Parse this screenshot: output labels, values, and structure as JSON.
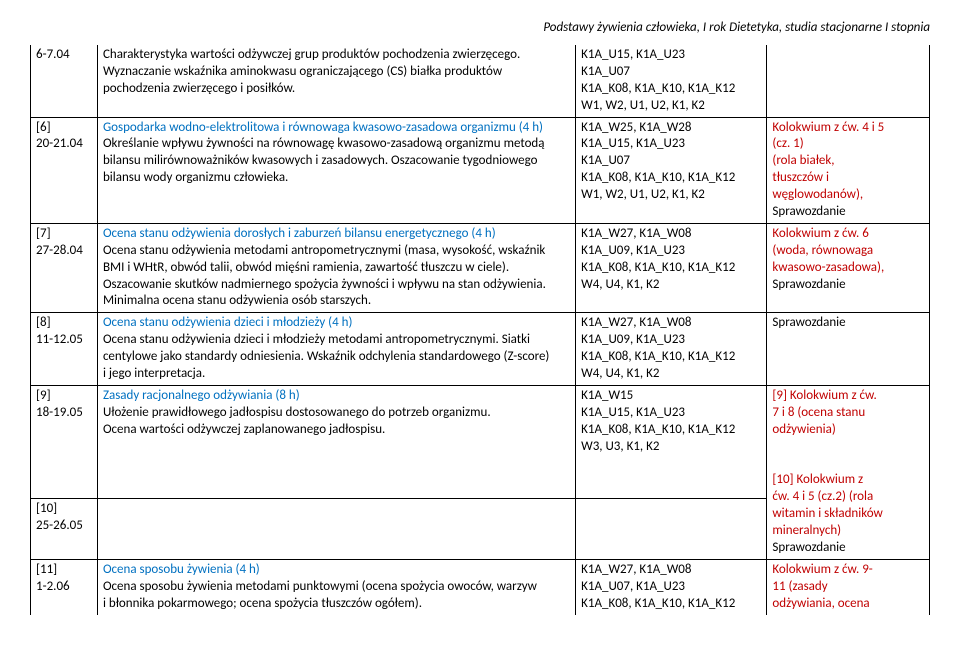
{
  "header": "Podstawy żywienia człowieka,  I rok Dietetyka, studia stacjonarne I stopnia",
  "rows": [
    {
      "col1": "6-7.04",
      "col2_lines": [
        {
          "t": "Charakterystyka wartości odżywczej grup produktów pochodzenia zwierzęcego."
        },
        {
          "t": "Wyznaczanie wskaźnika aminokwasu ograniczającego (CS) białka produktów"
        },
        {
          "t": "pochodzenia zwierzęcego i posiłków."
        }
      ],
      "col3_lines": [
        {
          "t": "K1A_U15, K1A_U23"
        },
        {
          "t": "K1A_U07"
        },
        {
          "t": "K1A_K08, K1A_K10, K1A_K12"
        },
        {
          "t": "W1, W2, U1, U2, K1, K2"
        }
      ],
      "col4_lines": [],
      "nb_top": true
    },
    {
      "col1": "[6]\n20-21.04",
      "col2_lines": [
        {
          "t": "Gospodarka wodno-elektrolitowa i równowaga kwasowo-zasadowa organizmu (4 h)",
          "c": "blue"
        },
        {
          "t": "Określanie wpływu żywności na równowagę kwasowo-zasadową organizmu metodą"
        },
        {
          "t": "bilansu milirównoważników kwasowych i zasadowych. Oszacowanie tygodniowego"
        },
        {
          "t": "bilansu wody organizmu człowieka."
        }
      ],
      "col3_lines": [
        {
          "t": "K1A_W25, K1A_W28"
        },
        {
          "t": "K1A_U15, K1A_U23"
        },
        {
          "t": "K1A_U07"
        },
        {
          "t": "K1A_K08, K1A_K10, K1A_K12"
        },
        {
          "t": "W1, W2, U1, U2, K1, K2"
        }
      ],
      "col4_lines": [
        {
          "t": "Kolokwium z ćw. 4 i 5",
          "c": "red"
        },
        {
          "t": "(cz. 1)",
          "c": "red"
        },
        {
          "t": "(rola białek,",
          "c": "red"
        },
        {
          "t": "tłuszczów i",
          "c": "red"
        },
        {
          "t": "węglowodanów),",
          "c": "red"
        },
        {
          "t": "Sprawozdanie"
        }
      ]
    },
    {
      "col1": "[7]\n27-28.04",
      "col2_lines": [
        {
          "t": "Ocena stanu odżywienia dorosłych i zaburzeń bilansu energetycznego (4 h)",
          "c": "blue"
        },
        {
          "t": "Ocena stanu odżywienia metodami antropometrycznymi (masa, wysokość, wskaźnik"
        },
        {
          "t": "BMI i WHtR, obwód talii, obwód mięśni ramienia, zawartość tłuszczu w ciele)."
        },
        {
          "t": "Oszacowanie skutków nadmiernego spożycia żywności i wpływu na stan odżywienia."
        },
        {
          "t": "Minimalna ocena stanu odżywienia osób starszych."
        }
      ],
      "col3_lines": [
        {
          "t": "K1A_W27, K1A_W08"
        },
        {
          "t": "K1A_U09, K1A_U23"
        },
        {
          "t": "K1A_K08, K1A_K10, K1A_K12"
        },
        {
          "t": "W4, U4, K1, K2"
        }
      ],
      "col4_lines": [
        {
          "t": "Kolokwium z ćw. 6",
          "c": "red"
        },
        {
          "t": "(woda, równowaga",
          "c": "red"
        },
        {
          "t": "kwasowo-zasadowa),",
          "c": "red"
        },
        {
          "t": "Sprawozdanie"
        }
      ]
    },
    {
      "col1": "[8]\n11-12.05",
      "col2_lines": [
        {
          "t": "Ocena stanu odżywienia dzieci i młodzieży (4 h)",
          "c": "blue"
        },
        {
          "t": "Ocena stanu odżywienia dzieci i młodzieży metodami antropometrycznymi. Siatki"
        },
        {
          "t": "centylowe jako standardy odniesienia. Wskaźnik odchylenia standardowego (Z-score)"
        },
        {
          "t": "i jego interpretacja."
        }
      ],
      "col3_lines": [
        {
          "t": "K1A_W27, K1A_W08"
        },
        {
          "t": "K1A_U09, K1A_U23"
        },
        {
          "t": "K1A_K08, K1A_K10, K1A_K12"
        },
        {
          "t": "W4, U4, K1, K2"
        }
      ],
      "col4_lines": [
        {
          "t": "Sprawozdanie"
        }
      ]
    },
    {
      "col1": "[9]\n18-19.05",
      "col2_lines": [
        {
          "t": "Zasady racjonalnego odżywiania (8 h)",
          "c": "blue"
        },
        {
          "t": "Ułożenie prawidłowego jadłospisu dostosowanego do potrzeb organizmu."
        },
        {
          "t": "Ocena  wartości odżywczej zaplanowanego jadłospisu."
        }
      ],
      "col3_lines": [
        {
          "t": "K1A_W15"
        },
        {
          "t": "K1A_U15, K1A_U23"
        },
        {
          "t": "K1A_K08, K1A_K10, K1A_K12"
        },
        {
          "t": "W3, U3, K1, K2"
        }
      ],
      "col4_lines": [
        {
          "t": "[9] Kolokwium z ćw.",
          "c": "red"
        },
        {
          "t": "7 i 8 (ocena stanu",
          "c": "red"
        },
        {
          "t": "odżywienia)",
          "c": "red"
        },
        {
          "t": ""
        },
        {
          "t": "[10] Kolokwium z",
          "c": "red"
        },
        {
          "t": "ćw. 4 i 5  (cz.2) (rola",
          "c": "red"
        },
        {
          "t": "witamin i składników",
          "c": "red"
        },
        {
          "t": "mineralnych)",
          "c": "red"
        },
        {
          "t": "Sprawozdanie"
        }
      ],
      "col4_rowspan": 2
    },
    {
      "col1": "[10]\n25-26.05",
      "col2_lines": [],
      "col3_lines": []
    },
    {
      "col1": "[11]\n1-2.06",
      "col2_lines": [
        {
          "t": "Ocena sposobu żywienia (4 h)",
          "c": "blue"
        },
        {
          "t": "Ocena sposobu żywienia metodami punktowymi (ocena spożycia owoców, warzyw"
        },
        {
          "t": "i błonnika pokarmowego; ocena spożycia tłuszczów ogółem)."
        }
      ],
      "col3_lines": [
        {
          "t": "K1A_W27, K1A_W08"
        },
        {
          "t": "K1A_U07, K1A_U23"
        },
        {
          "t": "K1A_K08, K1A_K10, K1A_K12"
        }
      ],
      "col4_lines": [
        {
          "t": "Kolokwium z ćw. 9-",
          "c": "red"
        },
        {
          "t": "11 (zasady",
          "c": "red"
        },
        {
          "t": "odżywiania, ocena",
          "c": "red"
        }
      ],
      "nb_bottom": true
    }
  ]
}
